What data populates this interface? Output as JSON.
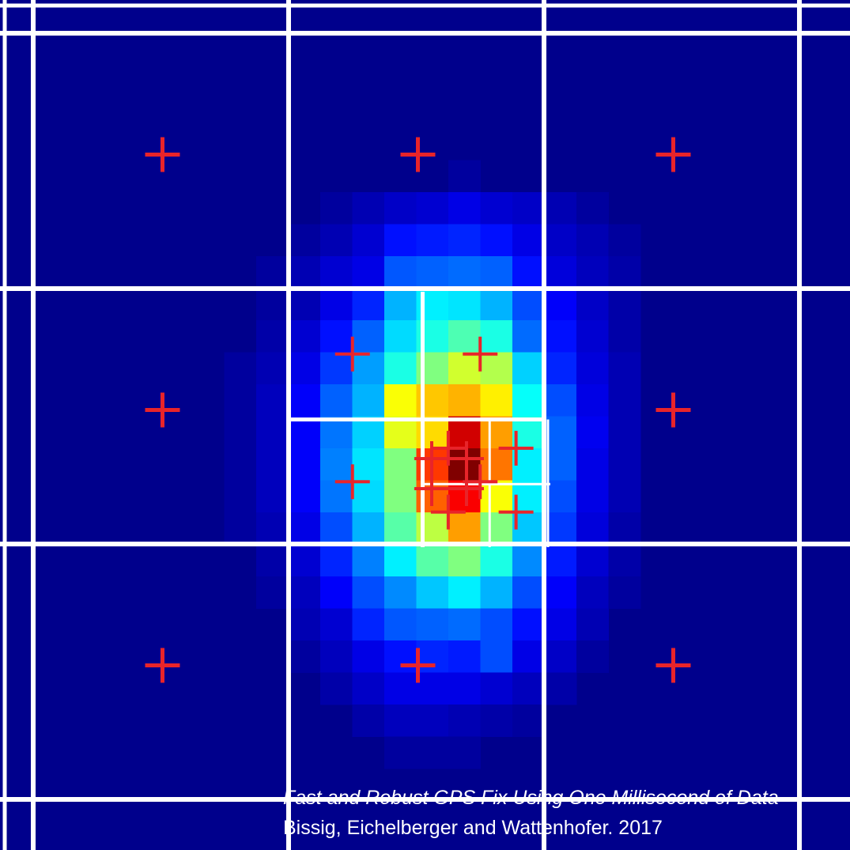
{
  "chart_data": {
    "type": "heatmap",
    "colormap": "jet",
    "background_color": "#00008c",
    "grid_color": "#ffffff",
    "marker_color": "#e8242a",
    "grid": {
      "coarse": {
        "rows": 3,
        "cols": 3
      },
      "refined_cell": {
        "row": 1,
        "col": 1
      },
      "refined_subgrid": {
        "rows": 2,
        "cols": 2
      }
    },
    "heat_cells": [
      [
        0,
        0,
        0,
        0,
        0,
        0,
        0,
        0,
        0,
        0,
        0,
        0,
        0,
        0,
        0,
        0,
        0,
        0,
        0,
        0,
        0,
        0,
        0,
        0,
        0,
        0
      ],
      [
        0,
        0,
        0,
        0,
        0,
        0,
        0,
        0,
        0,
        0,
        0,
        0,
        0,
        0,
        0,
        0,
        0,
        0,
        0,
        0,
        0,
        0,
        0,
        0,
        0,
        0
      ],
      [
        0,
        0,
        0,
        0,
        0,
        0,
        0,
        0,
        0,
        0,
        0,
        0,
        0,
        0,
        0,
        0,
        0,
        0,
        0,
        0,
        0,
        0,
        0,
        0,
        0,
        0
      ],
      [
        0,
        0,
        0,
        0,
        0,
        0,
        0,
        0,
        0,
        0,
        0,
        0,
        0,
        0,
        0,
        0,
        0,
        0,
        0,
        0,
        0,
        0,
        0,
        0,
        0,
        0
      ],
      [
        0,
        0,
        0,
        0,
        0,
        0,
        0,
        0,
        0,
        0,
        0,
        0,
        0,
        0,
        0,
        0,
        0,
        0,
        0,
        0,
        0,
        0,
        0,
        0,
        0,
        0
      ],
      [
        0,
        0,
        0,
        0,
        0,
        0,
        0,
        0,
        0,
        0,
        0,
        0,
        0,
        0,
        0.03,
        0,
        0,
        0,
        0,
        0,
        0,
        0,
        0,
        0,
        0,
        0
      ],
      [
        0,
        0,
        0,
        0,
        0,
        0,
        0,
        0,
        0,
        0,
        0.03,
        0.05,
        0.07,
        0.08,
        0.1,
        0.08,
        0.07,
        0.05,
        0.03,
        0,
        0,
        0,
        0,
        0,
        0,
        0
      ],
      [
        0,
        0,
        0,
        0,
        0,
        0,
        0,
        0,
        0,
        0.03,
        0.05,
        0.08,
        0.14,
        0.15,
        0.16,
        0.14,
        0.1,
        0.07,
        0.05,
        0.03,
        0,
        0,
        0,
        0,
        0,
        0
      ],
      [
        0,
        0,
        0,
        0,
        0,
        0,
        0,
        0,
        0.03,
        0.05,
        0.08,
        0.1,
        0.21,
        0.22,
        0.23,
        0.22,
        0.14,
        0.09,
        0.06,
        0.04,
        0,
        0,
        0,
        0,
        0,
        0
      ],
      [
        0,
        0,
        0,
        0,
        0,
        0,
        0,
        0,
        0.03,
        0.05,
        0.1,
        0.16,
        0.3,
        0.36,
        0.35,
        0.3,
        0.2,
        0.12,
        0.07,
        0.04,
        0,
        0,
        0,
        0,
        0,
        0
      ],
      [
        0,
        0,
        0,
        0,
        0,
        0,
        0,
        0,
        0.04,
        0.08,
        0.14,
        0.22,
        0.34,
        0.4,
        0.45,
        0.4,
        0.23,
        0.14,
        0.08,
        0.04,
        0,
        0,
        0,
        0,
        0,
        0
      ],
      [
        0,
        0,
        0,
        0,
        0,
        0,
        0,
        0.03,
        0.05,
        0.1,
        0.18,
        0.28,
        0.4,
        0.5,
        0.58,
        0.55,
        0.33,
        0.16,
        0.09,
        0.05,
        0,
        0,
        0,
        0,
        0,
        0
      ],
      [
        0,
        0,
        0,
        0,
        0,
        0,
        0,
        0.03,
        0.06,
        0.12,
        0.22,
        0.3,
        0.62,
        0.68,
        0.7,
        0.64,
        0.38,
        0.2,
        0.1,
        0.05,
        0,
        0,
        0,
        0,
        0,
        0
      ],
      [
        0,
        0,
        0,
        0,
        0,
        0,
        0,
        0.03,
        0.06,
        0.12,
        0.24,
        0.33,
        0.6,
        0.66,
        0.92,
        0.72,
        0.4,
        0.22,
        0.11,
        0.05,
        0,
        0,
        0,
        0,
        0,
        0
      ],
      [
        0,
        0,
        0,
        0,
        0,
        0,
        0,
        0.03,
        0.06,
        0.12,
        0.25,
        0.35,
        0.5,
        0.82,
        1,
        0.76,
        0.36,
        0.22,
        0.1,
        0.05,
        0,
        0,
        0,
        0,
        0,
        0
      ],
      [
        0,
        0,
        0,
        0,
        0,
        0,
        0,
        0.03,
        0.06,
        0.12,
        0.24,
        0.34,
        0.5,
        0.78,
        0.88,
        0.62,
        0.36,
        0.2,
        0.1,
        0.05,
        0,
        0,
        0,
        0,
        0,
        0
      ],
      [
        0,
        0,
        0,
        0,
        0,
        0,
        0,
        0.03,
        0.05,
        0.1,
        0.2,
        0.3,
        0.46,
        0.56,
        0.72,
        0.5,
        0.32,
        0.18,
        0.09,
        0.04,
        0,
        0,
        0,
        0,
        0,
        0
      ],
      [
        0,
        0,
        0,
        0,
        0,
        0,
        0,
        0,
        0.04,
        0.08,
        0.16,
        0.25,
        0.36,
        0.46,
        0.5,
        0.4,
        0.26,
        0.15,
        0.08,
        0.04,
        0,
        0,
        0,
        0,
        0,
        0
      ],
      [
        0,
        0,
        0,
        0,
        0,
        0,
        0,
        0,
        0.03,
        0.06,
        0.12,
        0.2,
        0.26,
        0.32,
        0.36,
        0.3,
        0.2,
        0.12,
        0.06,
        0.03,
        0,
        0,
        0,
        0,
        0,
        0
      ],
      [
        0,
        0,
        0,
        0,
        0,
        0,
        0,
        0,
        0,
        0.05,
        0.08,
        0.16,
        0.21,
        0.22,
        0.23,
        0.2,
        0.14,
        0.1,
        0.05,
        0,
        0,
        0,
        0,
        0,
        0,
        0
      ],
      [
        0,
        0,
        0,
        0,
        0,
        0,
        0,
        0,
        0,
        0.03,
        0.06,
        0.1,
        0.14,
        0.16,
        0.15,
        0.2,
        0.1,
        0.07,
        0.03,
        0,
        0,
        0,
        0,
        0,
        0,
        0
      ],
      [
        0,
        0,
        0,
        0,
        0,
        0,
        0,
        0,
        0,
        0,
        0.04,
        0.07,
        0.1,
        0.1,
        0.1,
        0.08,
        0.06,
        0.04,
        0,
        0,
        0,
        0,
        0,
        0,
        0,
        0
      ],
      [
        0,
        0,
        0,
        0,
        0,
        0,
        0,
        0,
        0,
        0,
        0,
        0.04,
        0.06,
        0.06,
        0.05,
        0.04,
        0.03,
        0,
        0,
        0,
        0,
        0,
        0,
        0,
        0,
        0
      ],
      [
        0,
        0,
        0,
        0,
        0,
        0,
        0,
        0,
        0,
        0,
        0,
        0,
        0.03,
        0.03,
        0.03,
        0,
        0,
        0,
        0,
        0,
        0,
        0,
        0,
        0,
        0,
        0
      ],
      [
        0,
        0,
        0,
        0,
        0,
        0,
        0,
        0,
        0,
        0,
        0,
        0,
        0,
        0,
        0,
        0,
        0,
        0,
        0,
        0,
        0,
        0,
        0,
        0,
        0,
        0
      ],
      [
        0,
        0,
        0,
        0,
        0,
        0,
        0,
        0,
        0,
        0,
        0,
        0,
        0,
        0,
        0,
        0,
        0,
        0,
        0,
        0,
        0,
        0,
        0,
        0,
        0,
        0
      ]
    ],
    "markers": {
      "coarse_centers": [
        {
          "row": 0,
          "col": 0
        },
        {
          "row": 0,
          "col": 1
        },
        {
          "row": 0,
          "col": 2
        },
        {
          "row": 1,
          "col": 0
        },
        {
          "row": 1,
          "col": 2
        },
        {
          "row": 2,
          "col": 0
        },
        {
          "row": 2,
          "col": 1
        },
        {
          "row": 2,
          "col": 2
        }
      ],
      "level2_centers": [
        {
          "row": 0,
          "col": 0
        },
        {
          "row": 0,
          "col": 1
        },
        {
          "row": 1,
          "col": 0
        },
        {
          "row": 1,
          "col": 1
        }
      ],
      "level3_centers": [
        {
          "row": 0,
          "col": 0
        },
        {
          "row": 0,
          "col": 1
        },
        {
          "row": 1,
          "col": 0
        },
        {
          "row": 1,
          "col": 1
        }
      ]
    }
  },
  "caption": {
    "title": "Fast and Robust GPS Fix Using One Millisecond of Data",
    "authors": "Bissig, Eichelberger and Wattenhofer. 2017"
  }
}
